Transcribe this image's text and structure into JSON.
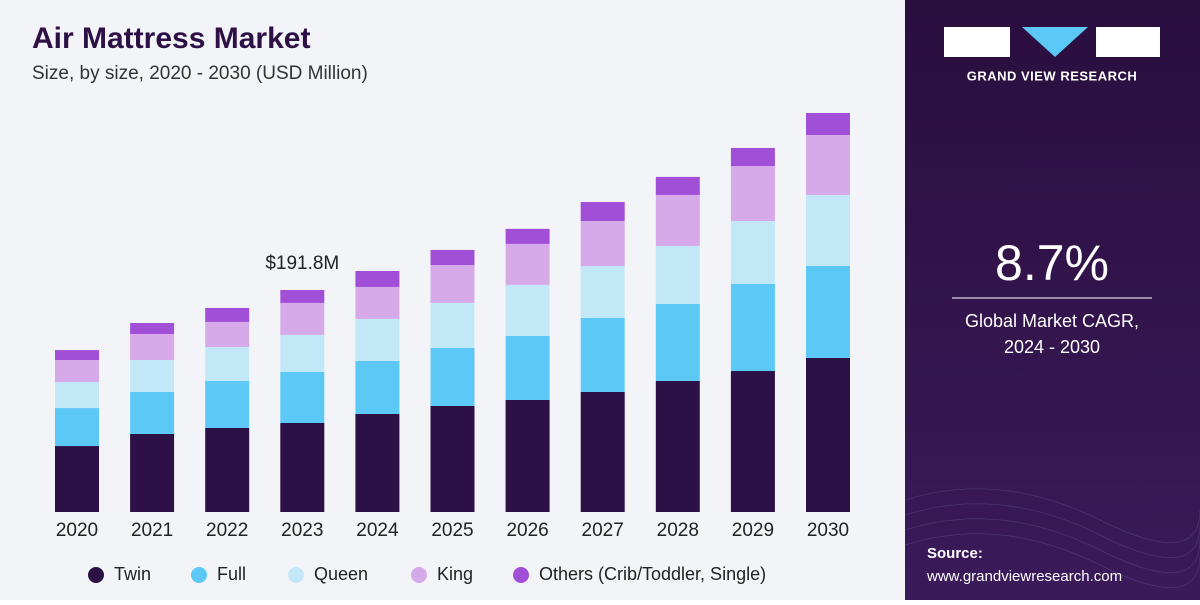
{
  "chart_data": {
    "type": "stacked_bar",
    "title": "Air Mattress Market",
    "subtitle": "Size, by size, 2020 - 2030 (USD Million)",
    "categories": [
      "2020",
      "2021",
      "2022",
      "2023",
      "2024",
      "2025",
      "2026",
      "2027",
      "2028",
      "2029",
      "2030"
    ],
    "series": [
      {
        "name": "Twin",
        "color": "#2d1045",
        "values": [
          57.0,
          67.4,
          72.6,
          76.9,
          84.7,
          91.6,
          96.8,
          103.7,
          113.2,
          121.8,
          133.1
        ]
      },
      {
        "name": "Full",
        "color": "#5bc8f5",
        "values": [
          32.8,
          36.3,
          40.6,
          44.1,
          45.8,
          50.1,
          55.3,
          63.9,
          66.5,
          75.2,
          79.5
        ]
      },
      {
        "name": "Queen",
        "color": "#c2e8f8",
        "values": [
          22.5,
          27.6,
          29.4,
          32.0,
          36.3,
          38.9,
          44.1,
          44.9,
          50.1,
          54.4,
          61.3
        ]
      },
      {
        "name": "King",
        "color": "#d6aae9",
        "values": [
          19.0,
          22.5,
          21.6,
          27.6,
          27.6,
          32.8,
          35.4,
          38.9,
          44.1,
          47.5,
          51.8
        ]
      },
      {
        "name": "Others (Crib/Toddler, Single)",
        "color": "#a24fd8",
        "values": [
          8.6,
          9.5,
          12.1,
          11.2,
          13.8,
          13.0,
          13.0,
          16.4,
          15.6,
          15.6,
          19.0
        ]
      }
    ],
    "annotation": {
      "text": "$191.8M",
      "category": "2023",
      "value": 191.8
    }
  },
  "panel": {
    "brand": "GRAND VIEW RESEARCH",
    "cagr": "8.7%",
    "cagr_label": [
      "Global Market CAGR,",
      "2024 - 2030"
    ],
    "source_label": "Source:",
    "source_url": "www.grandviewresearch.com"
  }
}
